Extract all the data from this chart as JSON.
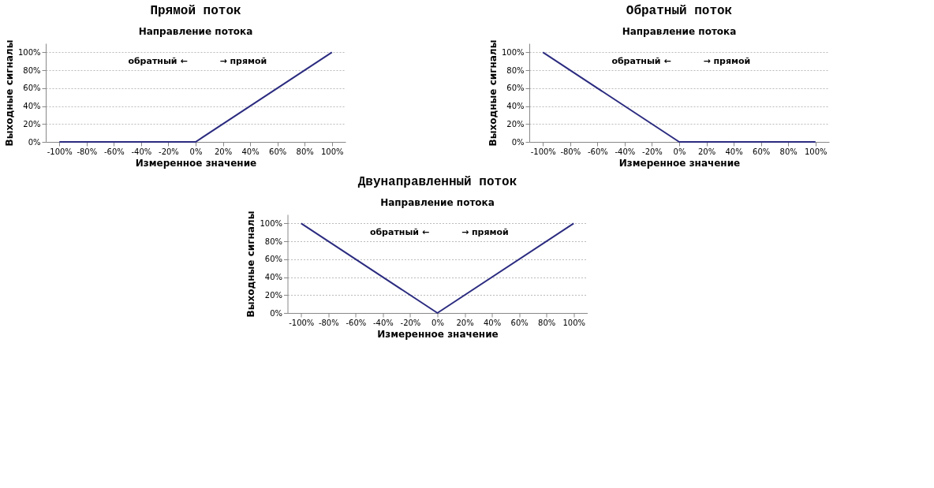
{
  "chart_data": [
    {
      "type": "line",
      "title": "Прямой поток",
      "subtitle": "Направление потока",
      "xlabel": "Измеренное значение",
      "ylabel": "Выходные сигналы",
      "annotations": [
        "обратный ←",
        "→ прямой"
      ],
      "series": [
        {
          "color": "#2b2b80",
          "x": [
            -100,
            0,
            100
          ],
          "values": [
            0,
            0,
            100
          ]
        }
      ],
      "xlim": [
        -110,
        110
      ],
      "xticks": [
        {
          "value": -100,
          "label": "-100%"
        },
        {
          "value": -80,
          "label": "-80%"
        },
        {
          "value": -60,
          "label": "-60%"
        },
        {
          "value": -40,
          "label": "-40%"
        },
        {
          "value": -20,
          "label": "-20%"
        },
        {
          "value": 0,
          "label": "0%"
        },
        {
          "value": 20,
          "label": "20%"
        },
        {
          "value": 40,
          "label": "40%"
        },
        {
          "value": 60,
          "label": "60%"
        },
        {
          "value": 80,
          "label": "80%"
        },
        {
          "value": 100,
          "label": "100%"
        }
      ],
      "ylim": [
        0,
        110
      ],
      "yticks": [
        {
          "value": 0,
          "label": "0%"
        },
        {
          "value": 20,
          "label": "20%"
        },
        {
          "value": 40,
          "label": "40%"
        },
        {
          "value": 60,
          "label": "60%"
        },
        {
          "value": 80,
          "label": "80%"
        },
        {
          "value": 100,
          "label": "100%"
        }
      ],
      "grid": "y",
      "line_style": "solid",
      "marker": "none"
    },
    {
      "type": "line",
      "title": "Обратный поток",
      "subtitle": "Направление потока",
      "xlabel": "Измеренное значение",
      "ylabel": "Выходные сигналы",
      "annotations": [
        "обратный ←",
        "→ прямой"
      ],
      "series": [
        {
          "color": "#2b2b80",
          "x": [
            -100,
            0,
            100
          ],
          "values": [
            100,
            0,
            0
          ]
        }
      ],
      "xlim": [
        -110,
        110
      ],
      "xticks": [
        {
          "value": -100,
          "label": "-100%"
        },
        {
          "value": -80,
          "label": "-80%"
        },
        {
          "value": -60,
          "label": "-60%"
        },
        {
          "value": -40,
          "label": "-40%"
        },
        {
          "value": -20,
          "label": "-20%"
        },
        {
          "value": 0,
          "label": "0%"
        },
        {
          "value": 20,
          "label": "20%"
        },
        {
          "value": 40,
          "label": "40%"
        },
        {
          "value": 60,
          "label": "60%"
        },
        {
          "value": 80,
          "label": "80%"
        },
        {
          "value": 100,
          "label": "100%"
        }
      ],
      "ylim": [
        0,
        110
      ],
      "yticks": [
        {
          "value": 0,
          "label": "0%"
        },
        {
          "value": 20,
          "label": "20%"
        },
        {
          "value": 40,
          "label": "40%"
        },
        {
          "value": 60,
          "label": "60%"
        },
        {
          "value": 80,
          "label": "80%"
        },
        {
          "value": 100,
          "label": "100%"
        }
      ],
      "grid": "y",
      "line_style": "solid",
      "marker": "none"
    },
    {
      "type": "line",
      "title": "Двунаправленный поток",
      "subtitle": "Направление потока",
      "xlabel": "Измеренное значение",
      "ylabel": "Выходные сигналы",
      "annotations": [
        "обратный ←",
        "→ прямой"
      ],
      "series": [
        {
          "color": "#2b2b80",
          "x": [
            -100,
            0,
            100
          ],
          "values": [
            100,
            0,
            100
          ]
        }
      ],
      "xlim": [
        -110,
        110
      ],
      "xticks": [
        {
          "value": -100,
          "label": "-100%"
        },
        {
          "value": -80,
          "label": "-80%"
        },
        {
          "value": -60,
          "label": "-60%"
        },
        {
          "value": -40,
          "label": "-40%"
        },
        {
          "value": -20,
          "label": "-20%"
        },
        {
          "value": 0,
          "label": "0%"
        },
        {
          "value": 20,
          "label": "20%"
        },
        {
          "value": 40,
          "label": "40%"
        },
        {
          "value": 60,
          "label": "60%"
        },
        {
          "value": 80,
          "label": "80%"
        },
        {
          "value": 100,
          "label": "100%"
        }
      ],
      "ylim": [
        0,
        110
      ],
      "yticks": [
        {
          "value": 0,
          "label": "0%"
        },
        {
          "value": 20,
          "label": "20%"
        },
        {
          "value": 40,
          "label": "40%"
        },
        {
          "value": 60,
          "label": "60%"
        },
        {
          "value": 80,
          "label": "80%"
        },
        {
          "value": 100,
          "label": "100%"
        }
      ],
      "grid": "y",
      "line_style": "solid",
      "marker": "none"
    }
  ]
}
